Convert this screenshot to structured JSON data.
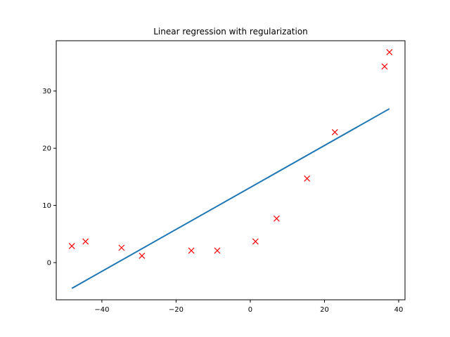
{
  "chart_data": {
    "type": "scatter",
    "title": "Linear regression with regularization",
    "xlabel": "",
    "ylabel": "",
    "xlim": [
      -52.3,
      41.7
    ],
    "ylim": [
      -6.5,
      38.8
    ],
    "xticks": [
      -40,
      -20,
      0,
      20,
      40
    ],
    "yticks": [
      0,
      10,
      20,
      30
    ],
    "xtick_labels": [
      "−40",
      "−20",
      "0",
      "20",
      "40"
    ],
    "ytick_labels": [
      "0",
      "10",
      "20",
      "30"
    ],
    "grid": false,
    "legend": null,
    "series": [
      {
        "type": "scatter",
        "marker": "x",
        "color": "#ff0000",
        "points": [
          {
            "x": -48.1,
            "y": 2.9
          },
          {
            "x": -44.4,
            "y": 3.7
          },
          {
            "x": -34.7,
            "y": 2.6
          },
          {
            "x": -29.2,
            "y": 1.2
          },
          {
            "x": -15.9,
            "y": 2.1
          },
          {
            "x": -8.9,
            "y": 2.1
          },
          {
            "x": 1.4,
            "y": 3.7
          },
          {
            "x": 7.1,
            "y": 7.7
          },
          {
            "x": 15.3,
            "y": 14.7
          },
          {
            "x": 22.8,
            "y": 22.8
          },
          {
            "x": 36.2,
            "y": 34.3
          },
          {
            "x": 37.5,
            "y": 36.8
          }
        ]
      },
      {
        "type": "line",
        "color": "#1f77b4",
        "points": [
          {
            "x": -48.1,
            "y": -4.5
          },
          {
            "x": 37.5,
            "y": 26.9
          }
        ]
      }
    ]
  }
}
